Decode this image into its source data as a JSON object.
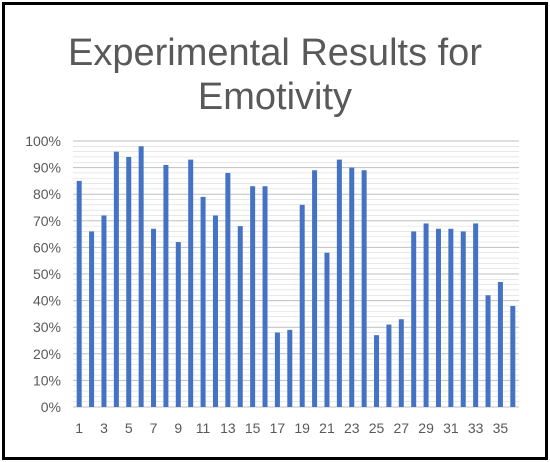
{
  "chart_data": {
    "type": "bar",
    "title_lines": [
      "Experimental Results for",
      "Emotivity"
    ],
    "xlabel": "",
    "ylabel": "",
    "ylim": [
      0,
      100
    ],
    "y_ticks": [
      "0%",
      "10%",
      "20%",
      "30%",
      "40%",
      "50%",
      "60%",
      "70%",
      "80%",
      "90%",
      "100%"
    ],
    "x_tick_labels": [
      "1",
      "3",
      "5",
      "7",
      "9",
      "11",
      "13",
      "15",
      "17",
      "19",
      "21",
      "23",
      "25",
      "27",
      "29",
      "31",
      "33",
      "35"
    ],
    "categories": [
      "1",
      "2",
      "3",
      "4",
      "5",
      "6",
      "7",
      "8",
      "9",
      "10",
      "11",
      "12",
      "13",
      "14",
      "15",
      "16",
      "17",
      "18",
      "19",
      "20",
      "21",
      "22",
      "23",
      "24",
      "25",
      "26",
      "27",
      "28",
      "29",
      "30",
      "31",
      "32",
      "33",
      "34",
      "35",
      "36"
    ],
    "values": [
      85,
      66,
      72,
      96,
      94,
      98,
      67,
      91,
      62,
      93,
      79,
      72,
      88,
      68,
      83,
      83,
      28,
      29,
      76,
      89,
      58,
      93,
      90,
      89,
      27,
      31,
      33,
      66,
      69,
      67,
      67,
      66,
      69,
      42,
      47,
      38
    ],
    "unit": "%",
    "bar_color": "#4472C4",
    "grid_color": "#D9D9D9",
    "text_color": "#595959",
    "grid": true,
    "legend": "none"
  }
}
